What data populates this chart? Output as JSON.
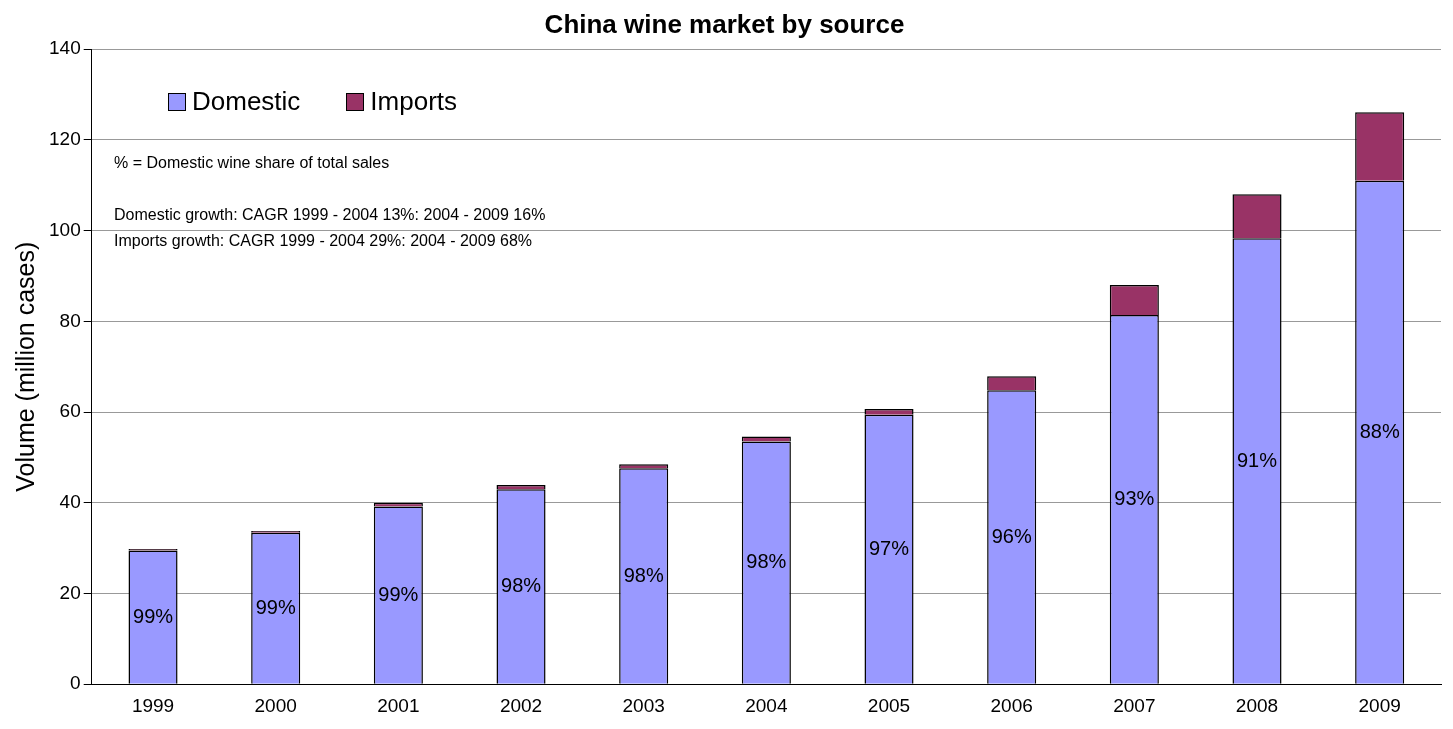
{
  "chart_data": {
    "type": "bar",
    "title": "China wine market by source",
    "ylabel": "Volume (million cases)",
    "categories": [
      "1999",
      "2000",
      "2001",
      "2002",
      "2003",
      "2004",
      "2005",
      "2006",
      "2007",
      "2008",
      "2009"
    ],
    "series": [
      {
        "name": "Domestic",
        "color": "#9999ff",
        "values": [
          29.5,
          33.4,
          39.2,
          43.0,
          47.6,
          53.5,
          59.4,
          64.8,
          81.4,
          98.3,
          111.0
        ]
      },
      {
        "name": "Imports",
        "color": "#993366",
        "values": [
          0.3,
          0.4,
          0.8,
          0.9,
          0.9,
          1.1,
          1.3,
          3.1,
          6.6,
          9.7,
          15.1
        ]
      }
    ],
    "stacked": true,
    "ylim": [
      0,
      140
    ],
    "yticks": [
      0,
      20,
      40,
      60,
      80,
      100,
      120,
      140
    ],
    "grid": "y",
    "legend": "top left",
    "annotations": [
      "% = Domestic wine share of total sales",
      "Domestic growth: CAGR 1999 - 2004 13%: 2004 - 2009 16%",
      "Imports growth: CAGR 1999 - 2004 29%: 2004 - 2009 68%",
      "99%",
      "99%",
      "99%",
      "98%",
      "98%",
      "98%",
      "97%",
      "96%",
      "93%",
      "91%",
      "88%"
    ]
  }
}
